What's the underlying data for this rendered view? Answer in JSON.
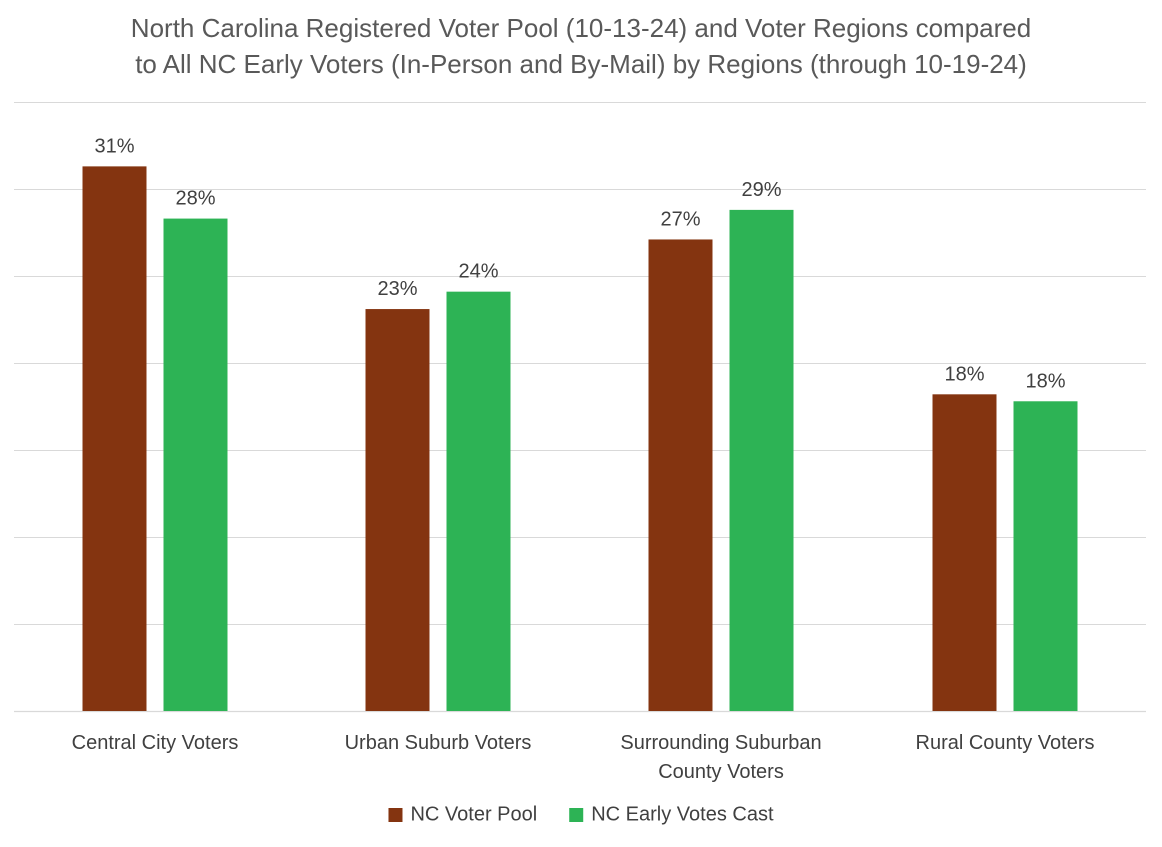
{
  "chart_data": {
    "type": "bar",
    "title_lines": [
      "North Carolina Registered Voter Pool (10-13-24) and Voter Regions compared",
      "to All NC Early Voters (In-Person and By-Mail) by Regions (through 10-19-24)"
    ],
    "xlabel": "",
    "ylabel": "",
    "ylim": [
      0,
      35
    ],
    "grid": true,
    "gridline_step": 5,
    "legend_position": "bottom",
    "categories": [
      [
        "Central City Voters"
      ],
      [
        "Urban Suburb Voters"
      ],
      [
        "Surrounding Suburban",
        "County Voters"
      ],
      [
        "Rural County Voters"
      ]
    ],
    "series": [
      {
        "name": "NC Voter Pool",
        "color": "#843410",
        "values": [
          31.3,
          23.1,
          27.1,
          18.2
        ],
        "labels": [
          "31%",
          "23%",
          "27%",
          "18%"
        ]
      },
      {
        "name": "NC Early Votes Cast",
        "color": "#2db355",
        "values": [
          28.3,
          24.1,
          28.8,
          17.8
        ],
        "labels": [
          "28%",
          "24%",
          "29%",
          "18%"
        ]
      }
    ]
  }
}
